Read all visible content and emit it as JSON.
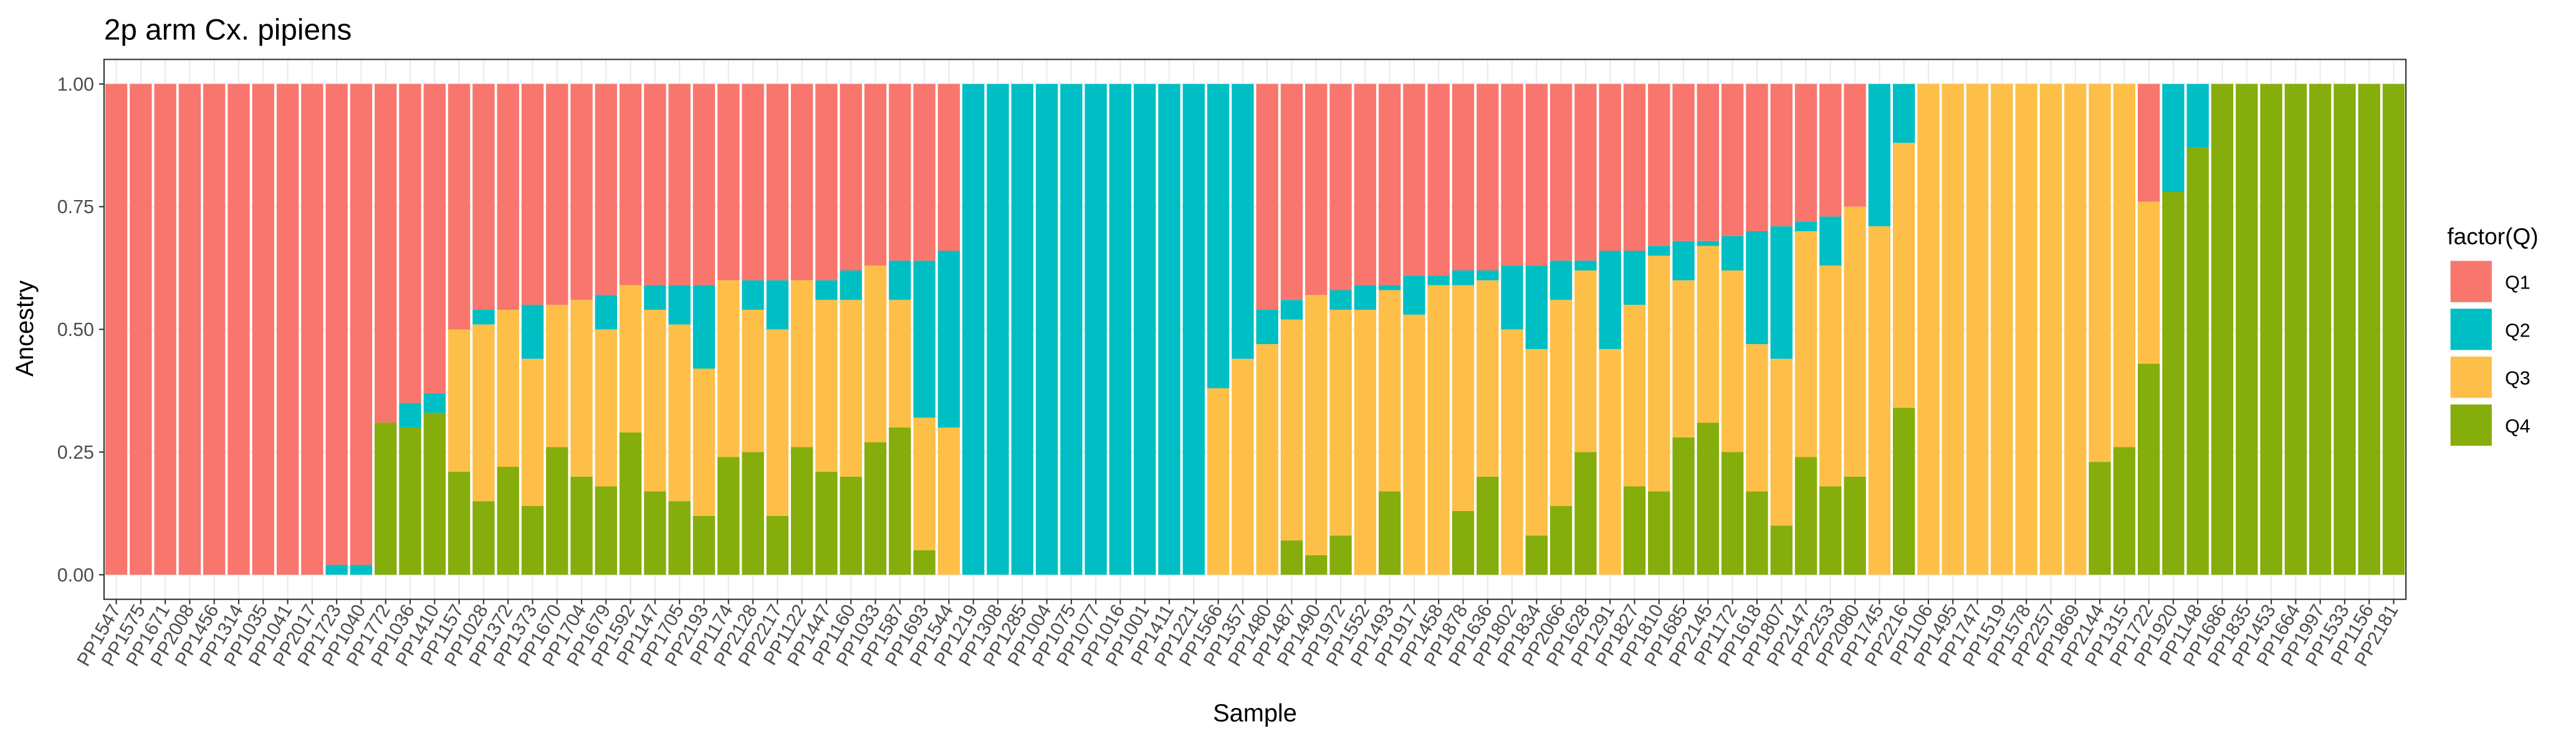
{
  "chart_data": {
    "type": "stacked_bar",
    "title": "2p arm Cx. pipiens",
    "x_label": "Sample",
    "y_label": "Ancestry",
    "legend_title": "factor(Q)",
    "legend_position": "right",
    "grid": true,
    "ylim": [
      -0.05,
      1.05
    ],
    "yticks": [
      {
        "value": 0,
        "label": "0.00"
      },
      0.25,
      {
        "value": 0.5,
        "label": "0.50"
      },
      0.75,
      {
        "value": 1,
        "label": "1.00"
      }
    ],
    "categories": [
      "PP1547",
      "PP1575",
      "PP1671",
      "PP2008",
      "PP1456",
      "PP1314",
      "PP1035",
      "PP1041",
      "PP2017",
      "PP1723",
      "PP1040",
      "PP1772",
      "PP1036",
      "PP1410",
      "PP1157",
      "PP1028",
      "PP1372",
      "PP1373",
      "PP1670",
      "PP1704",
      "PP1679",
      "PP1592",
      "PP1147",
      "PP1705",
      "PP2193",
      "PP1174",
      "PP2128",
      "PP2217",
      "PP1122",
      "PP1447",
      "PP1160",
      "PP1033",
      "PP1587",
      "PP1693",
      "PP1544",
      "PP1219",
      "PP1308",
      "PP1285",
      "PP1004",
      "PP1075",
      "PP1077",
      "PP1016",
      "PP1001",
      "PP1411",
      "PP1221",
      "PP1566",
      "PP1357",
      "PP1480",
      "PP1487",
      "PP1490",
      "PP1972",
      "PP1552",
      "PP1493",
      "PP1917",
      "PP1458",
      "PP1878",
      "PP1636",
      "PP1802",
      "PP1834",
      "PP2066",
      "PP1628",
      "PP1291",
      "PP1827",
      "PP1810",
      "PP1685",
      "PP2145",
      "PP1172",
      "PP1618",
      "PP1807",
      "PP2147",
      "PP2253",
      "PP2080",
      "PP1745",
      "PP2216",
      "PP1106",
      "PP1495",
      "PP1747",
      "PP1519",
      "PP1578",
      "PP2257",
      "PP1869",
      "PP2144",
      "PP1315",
      "PP1722",
      "PP1920",
      "PP1148",
      "PP1686",
      "PP1835",
      "PP1453",
      "PP1664",
      "PP1997",
      "PP1533",
      "PP1156",
      "PP2181"
    ],
    "series": [
      {
        "name": "Q1",
        "color": "#F8766D",
        "values": [
          1,
          1,
          1,
          1,
          1,
          1,
          1,
          1,
          1,
          0.98,
          0.98,
          0.69,
          0.65,
          0.63,
          0.5,
          0.46,
          0.46,
          0.45,
          0.45,
          0.44,
          0.43,
          0.41,
          0.41,
          0.41,
          0.41,
          0.4,
          0.4,
          0.4,
          0.4,
          0.4,
          0.38,
          0.37,
          0.36,
          0.36,
          0.34,
          0,
          0,
          0,
          0,
          0,
          0,
          0,
          0,
          0,
          0,
          0,
          0,
          0.46,
          0.44,
          0.43,
          0.42,
          0.41,
          0.41,
          0.39,
          0.39,
          0.38,
          0.38,
          0.37,
          0.37,
          0.36,
          0.36,
          0.34,
          0.34,
          0.33,
          0.32,
          0.32,
          0.31,
          0.3,
          0.29,
          0.28,
          0.27,
          0.25,
          0,
          0,
          0,
          0,
          0,
          0,
          0,
          0,
          0,
          0,
          0,
          0.24,
          0,
          0,
          0,
          0,
          0,
          0,
          0,
          0,
          0,
          0
        ]
      },
      {
        "name": "Q2",
        "color": "#00BFC4",
        "values": [
          0,
          0,
          0,
          0,
          0,
          0,
          0,
          0,
          0,
          0.02,
          0.02,
          0,
          0.05,
          0.04,
          0,
          0.03,
          0,
          0.11,
          0,
          0,
          0.07,
          0,
          0.05,
          0.08,
          0.17,
          0,
          0.06,
          0.1,
          0,
          0.04,
          0.06,
          0,
          0.08,
          0.32,
          0.36,
          1,
          1,
          1,
          1,
          1,
          1,
          1,
          1,
          1,
          1,
          0.62,
          0.56,
          0.07,
          0.04,
          0,
          0.04,
          0.05,
          0.01,
          0.08,
          0.02,
          0.03,
          0.02,
          0.13,
          0.17,
          0.08,
          0.02,
          0.2,
          0.11,
          0.02,
          0.08,
          0.01,
          0.07,
          0.23,
          0.27,
          0.02,
          0.1,
          0,
          0.29,
          0.12,
          0,
          0,
          0,
          0,
          0,
          0,
          0,
          0,
          0,
          0,
          0.22,
          0.13,
          0,
          0,
          0,
          0,
          0,
          0,
          0,
          0
        ]
      },
      {
        "name": "Q3",
        "color": "#FDBF47",
        "values": [
          0,
          0,
          0,
          0,
          0,
          0,
          0,
          0,
          0,
          0,
          0,
          0,
          0,
          0,
          0.29,
          0.36,
          0.32,
          0.3,
          0.29,
          0.36,
          0.32,
          0.3,
          0.37,
          0.36,
          0.3,
          0.36,
          0.29,
          0.38,
          0.34,
          0.35,
          0.36,
          0.36,
          0.26,
          0.27,
          0.3,
          0,
          0,
          0,
          0,
          0,
          0,
          0,
          0,
          0,
          0,
          0.38,
          0.44,
          0.47,
          0.45,
          0.53,
          0.46,
          0.54,
          0.41,
          0.53,
          0.59,
          0.46,
          0.4,
          0.5,
          0.38,
          0.42,
          0.37,
          0.46,
          0.37,
          0.48,
          0.32,
          0.36,
          0.37,
          0.3,
          0.34,
          0.46,
          0.45,
          0.55,
          0.71,
          0.54,
          1,
          1,
          1,
          1,
          1,
          1,
          1,
          0.77,
          0.74,
          0.33,
          0,
          0,
          0,
          0,
          0,
          0,
          0,
          0,
          0,
          0
        ]
      },
      {
        "name": "Q4",
        "color": "#85AD0B",
        "values": [
          0,
          0,
          0,
          0,
          0,
          0,
          0,
          0,
          0,
          0,
          0,
          0.31,
          0.3,
          0.33,
          0.21,
          0.15,
          0.22,
          0.14,
          0.26,
          0.2,
          0.18,
          0.29,
          0.17,
          0.15,
          0.12,
          0.24,
          0.25,
          0.12,
          0.26,
          0.21,
          0.2,
          0.27,
          0.3,
          0.05,
          0,
          0,
          0,
          0,
          0,
          0,
          0,
          0,
          0,
          0,
          0,
          0,
          0,
          0,
          0.07,
          0.04,
          0.08,
          0,
          0.17,
          0,
          0,
          0.13,
          0.2,
          0,
          0.08,
          0.14,
          0.25,
          0,
          0.18,
          0.17,
          0.28,
          0.31,
          0.25,
          0.17,
          0.1,
          0.24,
          0.18,
          0.2,
          0,
          0.34,
          0,
          0,
          0,
          0,
          0,
          0,
          0,
          0.23,
          0.26,
          0.43,
          0.78,
          0.87,
          1,
          1,
          1,
          1,
          1,
          1,
          1,
          1
        ]
      }
    ]
  }
}
